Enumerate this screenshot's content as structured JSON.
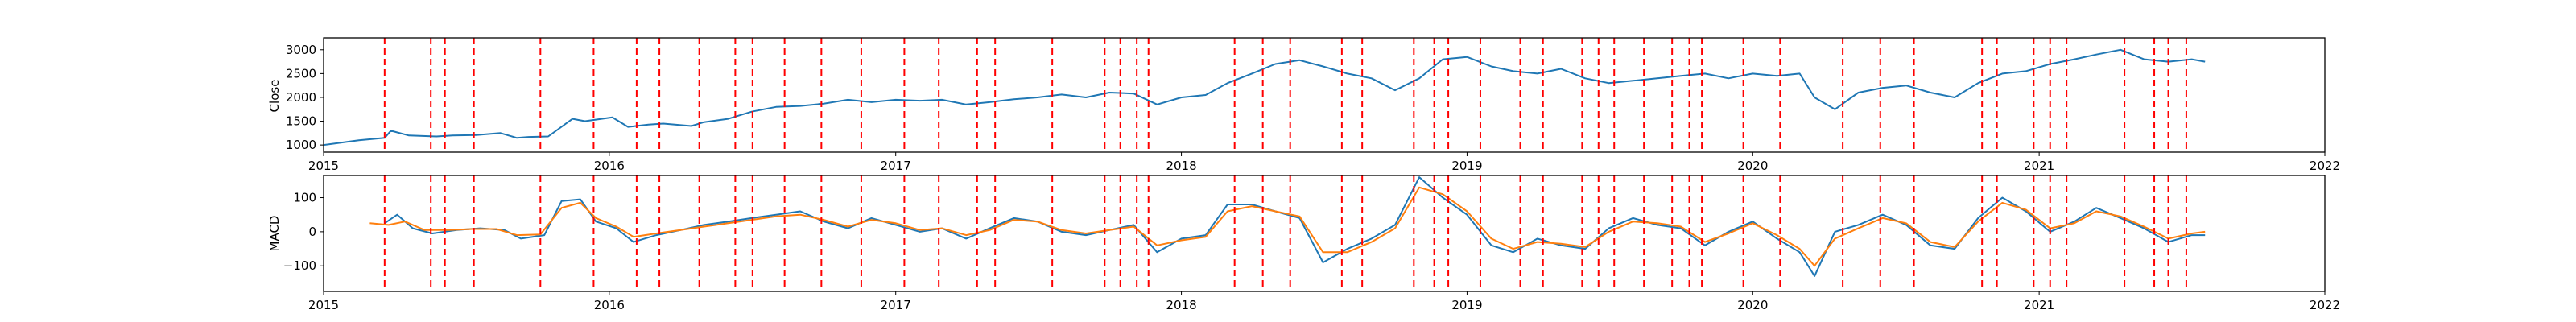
{
  "chart_data": [
    {
      "type": "line",
      "title": "",
      "xlabel": "",
      "ylabel": "Close",
      "xlim": [
        "2015-01-01",
        "2022-01-01"
      ],
      "ylim": [
        850,
        3250
      ],
      "x_tick_labels": [
        "2015",
        "2016",
        "2017",
        "2018",
        "2019",
        "2020",
        "2021",
        "2022"
      ],
      "y_ticks": [
        1000,
        1500,
        2000,
        2500,
        3000
      ],
      "y_tick_labels": [
        "1000",
        "1500",
        "2000",
        "2500",
        "3000"
      ],
      "grid": false,
      "series": [
        {
          "color": "#1f77b4",
          "x": [
            "2015-01-01",
            "2015-02-15",
            "2015-03-20",
            "2015-03-28",
            "2015-04-20",
            "2015-05-25",
            "2015-06-15",
            "2015-07-15",
            "2015-08-15",
            "2015-09-05",
            "2015-09-20",
            "2015-10-15",
            "2015-11-15",
            "2015-12-01",
            "2016-01-05",
            "2016-01-25",
            "2016-02-20",
            "2016-03-10",
            "2016-04-15",
            "2016-05-01",
            "2016-06-01",
            "2016-07-01",
            "2016-08-01",
            "2016-09-01",
            "2016-10-01",
            "2016-11-01",
            "2016-12-01",
            "2017-01-01",
            "2017-02-01",
            "2017-03-01",
            "2017-04-01",
            "2017-05-01",
            "2017-06-01",
            "2017-07-01",
            "2017-08-01",
            "2017-09-01",
            "2017-10-01",
            "2017-11-01",
            "2017-12-01",
            "2018-01-01",
            "2018-02-01",
            "2018-03-01",
            "2018-04-01",
            "2018-05-01",
            "2018-06-01",
            "2018-07-01",
            "2018-08-01",
            "2018-09-01",
            "2018-10-01",
            "2018-11-01",
            "2018-12-01",
            "2019-01-01",
            "2019-02-01",
            "2019-03-01",
            "2019-04-01",
            "2019-05-01",
            "2019-06-01",
            "2019-07-01",
            "2019-08-01",
            "2019-09-01",
            "2019-10-01",
            "2019-11-01",
            "2019-12-01",
            "2020-01-01",
            "2020-02-01",
            "2020-03-01",
            "2020-03-20",
            "2020-04-15",
            "2020-05-15",
            "2020-06-15",
            "2020-07-15",
            "2020-08-15",
            "2020-09-15",
            "2020-10-15",
            "2020-11-15",
            "2020-12-15",
            "2021-01-15",
            "2021-02-15",
            "2021-03-15",
            "2021-04-15",
            "2021-05-15",
            "2021-06-15",
            "2021-07-15",
            "2021-08-01"
          ],
          "y": [
            1000,
            1100,
            1150,
            1300,
            1200,
            1180,
            1200,
            1210,
            1250,
            1150,
            1170,
            1180,
            1550,
            1500,
            1580,
            1380,
            1430,
            1450,
            1400,
            1480,
            1550,
            1700,
            1800,
            1820,
            1870,
            1950,
            1900,
            1950,
            1930,
            1950,
            1850,
            1900,
            1960,
            2000,
            2060,
            2000,
            2100,
            2080,
            1850,
            2000,
            2050,
            2300,
            2500,
            2700,
            2780,
            2650,
            2500,
            2400,
            2150,
            2400,
            2800,
            2850,
            2650,
            2550,
            2500,
            2600,
            2400,
            2300,
            2350,
            2400,
            2450,
            2500,
            2400,
            2500,
            2450,
            2500,
            2000,
            1750,
            2100,
            2200,
            2250,
            2100,
            2000,
            2300,
            2500,
            2550,
            2700,
            2800,
            2900,
            3000,
            2800,
            2750,
            2800,
            2750
          ]
        }
      ]
    },
    {
      "type": "line",
      "title": "",
      "xlabel": "",
      "ylabel": "MACD",
      "xlim": [
        "2015-01-01",
        "2022-01-01"
      ],
      "ylim": [
        -175,
        165
      ],
      "x_tick_labels": [
        "2015",
        "2016",
        "2017",
        "2018",
        "2019",
        "2020",
        "2021",
        "2022"
      ],
      "y_ticks": [
        -100,
        0,
        100
      ],
      "y_tick_labels": [
        "−100",
        "0",
        "100"
      ],
      "grid": false,
      "series": [
        {
          "color": "#1f77b4",
          "x": [
            "2015-03-20",
            "2015-04-05",
            "2015-04-25",
            "2015-05-20",
            "2015-06-20",
            "2015-07-20",
            "2015-08-20",
            "2015-09-10",
            "2015-10-10",
            "2015-11-01",
            "2015-11-25",
            "2015-12-15",
            "2016-01-10",
            "2016-02-01",
            "2016-03-01",
            "2016-04-01",
            "2016-05-01",
            "2016-06-01",
            "2016-07-01",
            "2016-08-01",
            "2016-09-01",
            "2016-10-01",
            "2016-11-01",
            "2016-12-01",
            "2017-01-01",
            "2017-02-01",
            "2017-03-01",
            "2017-04-01",
            "2017-05-01",
            "2017-06-01",
            "2017-07-01",
            "2017-08-01",
            "2017-09-01",
            "2017-10-01",
            "2017-11-01",
            "2017-12-01",
            "2018-01-01",
            "2018-02-01",
            "2018-03-01",
            "2018-04-01",
            "2018-05-01",
            "2018-06-01",
            "2018-07-01",
            "2018-08-01",
            "2018-09-01",
            "2018-10-01",
            "2018-11-01",
            "2018-12-01",
            "2019-01-01",
            "2019-02-01",
            "2019-03-01",
            "2019-04-01",
            "2019-05-01",
            "2019-06-01",
            "2019-07-01",
            "2019-08-01",
            "2019-09-01",
            "2019-10-01",
            "2019-11-01",
            "2019-12-01",
            "2020-01-01",
            "2020-02-01",
            "2020-03-01",
            "2020-03-20",
            "2020-04-15",
            "2020-05-15",
            "2020-06-15",
            "2020-07-15",
            "2020-08-15",
            "2020-09-15",
            "2020-10-15",
            "2020-11-15",
            "2020-12-15",
            "2021-01-15",
            "2021-02-15",
            "2021-03-15",
            "2021-04-15",
            "2021-05-15",
            "2021-06-15",
            "2021-07-15",
            "2021-08-01"
          ],
          "y": [
            25,
            50,
            10,
            -5,
            5,
            10,
            5,
            -20,
            -10,
            90,
            95,
            30,
            10,
            -30,
            -10,
            5,
            20,
            30,
            40,
            50,
            60,
            30,
            10,
            40,
            20,
            0,
            10,
            -20,
            10,
            40,
            30,
            0,
            -10,
            5,
            20,
            -60,
            -20,
            -10,
            80,
            80,
            60,
            40,
            -90,
            -50,
            -20,
            20,
            160,
            100,
            50,
            -40,
            -60,
            -20,
            -40,
            -50,
            10,
            40,
            20,
            10,
            -40,
            0,
            30,
            -20,
            -60,
            -130,
            0,
            20,
            50,
            20,
            -40,
            -50,
            40,
            100,
            60,
            0,
            30,
            70,
            40,
            10,
            -30,
            -10,
            -10
          ]
        },
        {
          "color": "#ff7f0e",
          "x": [
            "2015-03-01",
            "2015-03-25",
            "2015-04-15",
            "2015-05-10",
            "2015-06-10",
            "2015-07-10",
            "2015-08-10",
            "2015-09-05",
            "2015-10-05",
            "2015-11-01",
            "2015-11-25",
            "2015-12-15",
            "2016-01-10",
            "2016-02-01",
            "2016-03-01",
            "2016-04-01",
            "2016-05-01",
            "2016-06-01",
            "2016-07-01",
            "2016-08-01",
            "2016-09-01",
            "2016-10-01",
            "2016-11-01",
            "2016-12-01",
            "2017-01-01",
            "2017-02-01",
            "2017-03-01",
            "2017-04-01",
            "2017-05-01",
            "2017-06-01",
            "2017-07-01",
            "2017-08-01",
            "2017-09-01",
            "2017-10-01",
            "2017-11-01",
            "2017-12-01",
            "2018-01-01",
            "2018-02-01",
            "2018-03-01",
            "2018-04-01",
            "2018-05-01",
            "2018-06-01",
            "2018-07-01",
            "2018-08-01",
            "2018-09-01",
            "2018-10-01",
            "2018-11-01",
            "2018-12-01",
            "2019-01-01",
            "2019-02-01",
            "2019-03-01",
            "2019-04-01",
            "2019-05-01",
            "2019-06-01",
            "2019-07-01",
            "2019-08-01",
            "2019-09-01",
            "2019-10-01",
            "2019-11-01",
            "2019-12-01",
            "2020-01-01",
            "2020-02-01",
            "2020-03-01",
            "2020-03-20",
            "2020-04-15",
            "2020-05-15",
            "2020-06-15",
            "2020-07-15",
            "2020-08-15",
            "2020-09-15",
            "2020-10-15",
            "2020-11-15",
            "2020-12-15",
            "2021-01-15",
            "2021-02-15",
            "2021-03-15",
            "2021-04-15",
            "2021-05-15",
            "2021-06-15",
            "2021-07-15",
            "2021-08-01"
          ],
          "y": [
            25,
            20,
            30,
            5,
            5,
            8,
            8,
            -10,
            -8,
            70,
            85,
            40,
            15,
            -15,
            -5,
            5,
            15,
            25,
            35,
            45,
            50,
            35,
            15,
            35,
            25,
            5,
            10,
            -10,
            5,
            35,
            30,
            5,
            -5,
            5,
            15,
            -40,
            -25,
            -15,
            60,
            75,
            60,
            45,
            -60,
            -60,
            -30,
            10,
            130,
            110,
            60,
            -20,
            -50,
            -30,
            -35,
            -45,
            0,
            30,
            25,
            15,
            -30,
            -5,
            25,
            -10,
            -50,
            -100,
            -20,
            10,
            40,
            25,
            -30,
            -45,
            30,
            85,
            65,
            10,
            25,
            60,
            45,
            15,
            -20,
            -5,
            0
          ]
        }
      ]
    }
  ],
  "event_markers": {
    "color": "#ff0000",
    "style": "dashed",
    "dates": [
      "2015-03-20",
      "2015-05-18",
      "2015-06-05",
      "2015-07-12",
      "2015-10-05",
      "2015-12-12",
      "2016-02-05",
      "2016-03-05",
      "2016-04-25",
      "2016-06-10",
      "2016-07-02",
      "2016-08-12",
      "2016-09-28",
      "2016-11-18",
      "2017-01-12",
      "2017-02-25",
      "2017-04-15",
      "2017-05-08",
      "2017-07-20",
      "2017-09-25",
      "2017-10-15",
      "2017-11-05",
      "2017-11-20",
      "2018-03-10",
      "2018-04-15",
      "2018-05-20",
      "2018-07-25",
      "2018-08-20",
      "2018-10-25",
      "2018-11-20",
      "2018-12-08",
      "2019-01-18",
      "2019-03-10",
      "2019-04-08",
      "2019-05-28",
      "2019-06-18",
      "2019-07-08",
      "2019-08-15",
      "2019-09-20",
      "2019-10-12",
      "2019-10-28",
      "2019-12-20",
      "2020-02-05",
      "2020-04-25",
      "2020-06-12",
      "2020-07-25",
      "2020-10-20",
      "2020-11-08",
      "2020-12-25",
      "2021-01-15",
      "2021-02-05",
      "2021-04-20",
      "2021-05-28",
      "2021-06-15",
      "2021-07-08"
    ]
  }
}
